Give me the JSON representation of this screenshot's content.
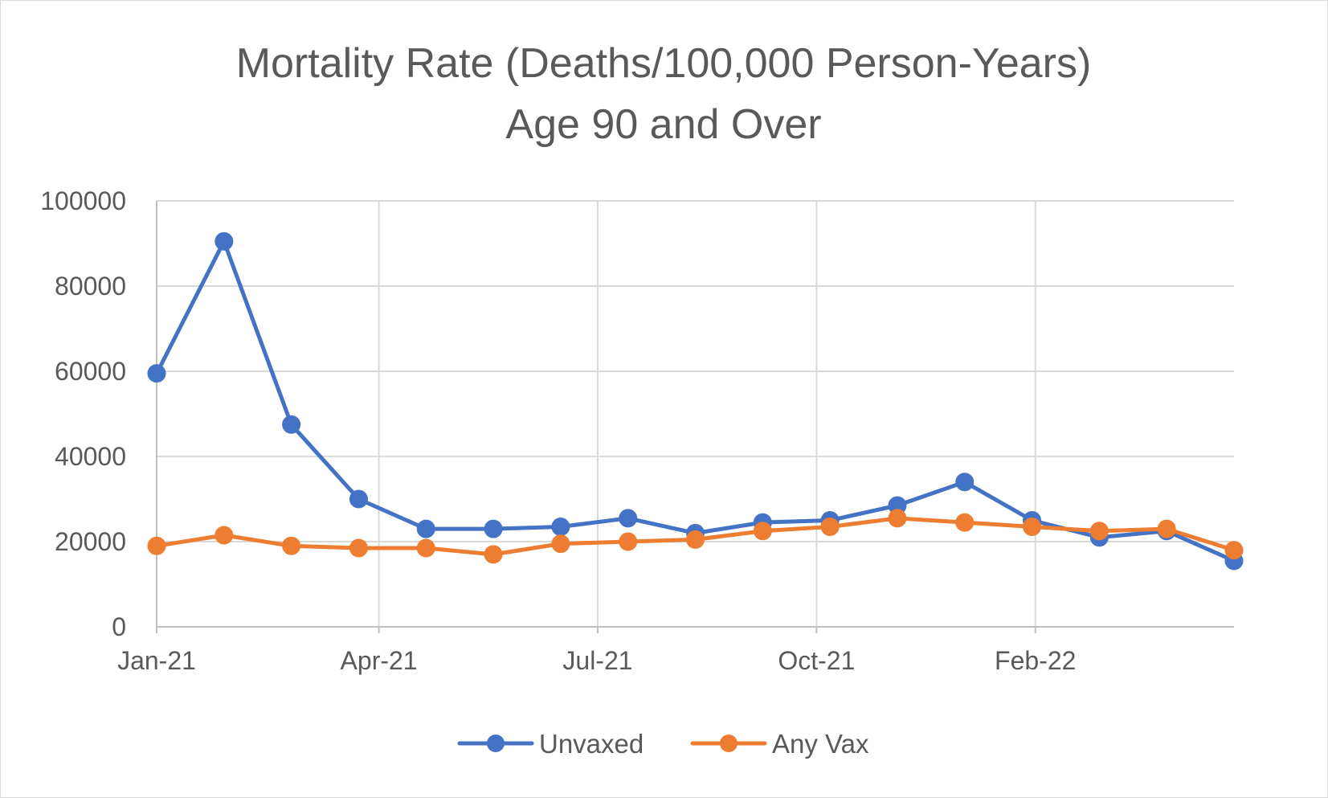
{
  "chart_data": {
    "type": "line",
    "title": "Mortality Rate (Deaths/100,000 Person-Years)",
    "subtitle": "Age 90 and Over",
    "xlabel": "",
    "ylabel": "",
    "ylim": [
      0,
      100000
    ],
    "yticks": [
      "0",
      "20000",
      "40000",
      "60000",
      "80000",
      "100000"
    ],
    "x_tick_labels": [
      "Jan-21",
      "Apr-21",
      "Jul-21",
      "Oct-21",
      "Feb-22"
    ],
    "x_tick_index": [
      0,
      3.3,
      6.55,
      9.8,
      13.05
    ],
    "grid": true,
    "legend_position": "bottom",
    "x": [
      0,
      1,
      2,
      3,
      4,
      5,
      6,
      7,
      8,
      9,
      10,
      11,
      12,
      13,
      14,
      15,
      16
    ],
    "series": [
      {
        "name": "Unvaxed",
        "color": "#4472c4",
        "values": [
          59500,
          90500,
          47500,
          30000,
          23000,
          23000,
          23500,
          25500,
          22000,
          24500,
          25000,
          28500,
          34000,
          25000,
          21000,
          22500,
          15500
        ]
      },
      {
        "name": "Any Vax",
        "color": "#ed7d31",
        "values": [
          19000,
          21500,
          19000,
          18500,
          18500,
          17000,
          19500,
          20000,
          20500,
          22500,
          23500,
          25500,
          24500,
          23500,
          22500,
          23000,
          18000
        ]
      }
    ]
  }
}
